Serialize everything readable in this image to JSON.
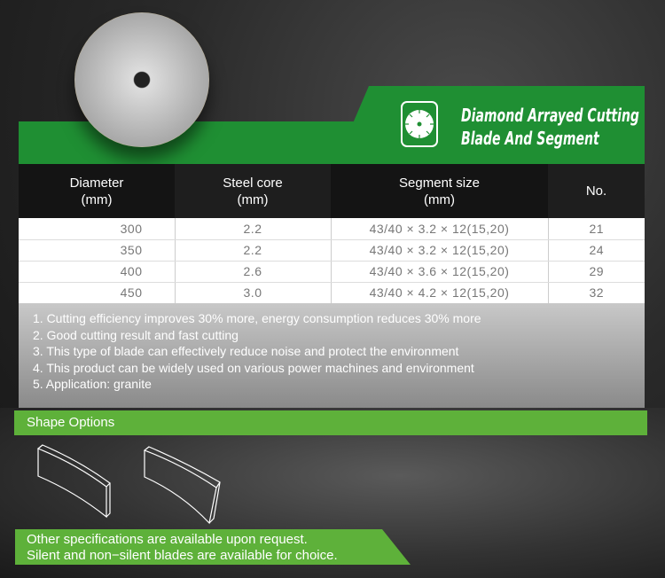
{
  "header": {
    "title_line1": "Diamond Arrayed Cutting",
    "title_line2": "Blade And Segment",
    "icon": "saw-blade-icon"
  },
  "table": {
    "headers": [
      [
        "Diameter",
        "(mm)"
      ],
      [
        "Steel core",
        "(mm)"
      ],
      [
        "Segment size",
        "(mm)"
      ],
      [
        "No.",
        ""
      ]
    ],
    "rows": [
      [
        "300",
        "2.2",
        "43/40 × 3.2 × 12(15,20)",
        "21"
      ],
      [
        "350",
        "2.2",
        "43/40 × 3.2 × 12(15,20)",
        "24"
      ],
      [
        "400",
        "2.6",
        "43/40 × 3.6 × 12(15,20)",
        "29"
      ],
      [
        "450",
        "3.0",
        "43/40 × 4.2 × 12(15,20)",
        "32"
      ]
    ]
  },
  "notes": [
    "1. Cutting efficiency improves 30% more, energy consumption reduces 30% more",
    "2. Good cutting result and fast cutting",
    "3. This type of blade can effectively reduce noise and protect the environment",
    "4. This product can be widely used on various power machines and environment",
    "5. Application: granite"
  ],
  "shape_options": {
    "label": "Shape Options"
  },
  "footer": {
    "line1": "Other specifications are available upon request.",
    "line2": "Silent and non−silent blades are available for choice."
  },
  "colors": {
    "dark_green": "#1f8f33",
    "light_green": "#5eb13a"
  }
}
